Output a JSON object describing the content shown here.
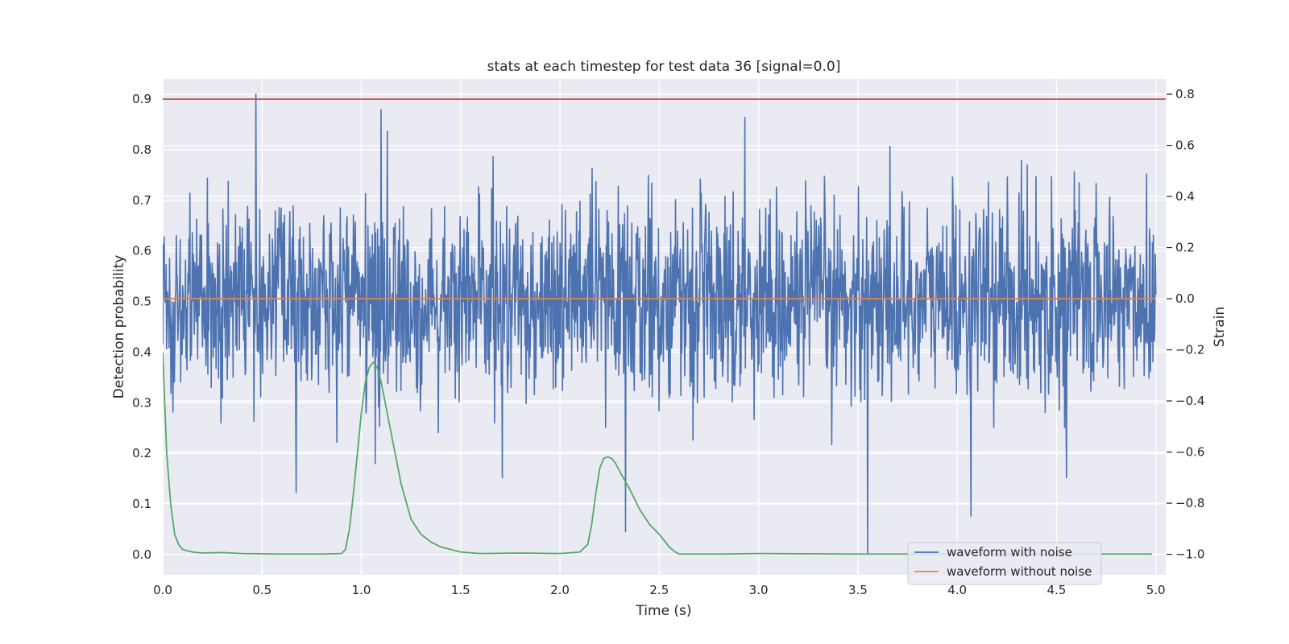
{
  "chart_data": {
    "type": "line",
    "title": "stats at each timestep for test data 36 [signal=0.0]",
    "xlabel": "Time (s)",
    "ylabel_left": "Detection probability",
    "ylabel_right": "Strain",
    "xlim": [
      0.0,
      5.05
    ],
    "ylim_left": [
      -0.04,
      0.94
    ],
    "ylim_right": [
      -1.08,
      0.86
    ],
    "x_ticks": [
      0.0,
      0.5,
      1.0,
      1.5,
      2.0,
      2.5,
      3.0,
      3.5,
      4.0,
      4.5,
      5.0
    ],
    "x_tick_labels": [
      "0.0",
      "0.5",
      "1.0",
      "1.5",
      "2.0",
      "2.5",
      "3.0",
      "3.5",
      "4.0",
      "4.5",
      "5.0"
    ],
    "y_left_ticks": [
      0.0,
      0.1,
      0.2,
      0.3,
      0.4,
      0.5,
      0.6,
      0.7,
      0.8,
      0.9
    ],
    "y_left_tick_labels": [
      "0.0",
      "0.1",
      "0.2",
      "0.3",
      "0.4",
      "0.5",
      "0.6",
      "0.7",
      "0.8",
      "0.9"
    ],
    "y_right_ticks": [
      -1.0,
      -0.8,
      -0.6,
      -0.4,
      -0.2,
      0.0,
      0.2,
      0.4,
      0.6,
      0.8
    ],
    "y_right_tick_labels": [
      "−1.0",
      "−0.8",
      "−0.6",
      "−0.4",
      "−0.2",
      "0.0",
      "0.2",
      "0.4",
      "0.6",
      "0.8"
    ],
    "grid": true,
    "legend_position": "lower-right",
    "background_color": "#eaeaf2",
    "threshold": {
      "axis": "left",
      "value": 0.9,
      "color": "#c44e52"
    },
    "series": [
      {
        "name": "waveform with noise",
        "axis": "right",
        "color": "#4c72b0",
        "x_range": [
          0.0,
          5.0
        ],
        "samples": 2048,
        "noise_sigma": 0.19,
        "value_range": [
          -1.0,
          0.8
        ],
        "notable_points": [
          {
            "x": 0.47,
            "y": 0.8
          },
          {
            "x": 1.1,
            "y": 0.74
          },
          {
            "x": 2.93,
            "y": 0.71
          },
          {
            "x": 3.55,
            "y": -1.0
          },
          {
            "x": 4.07,
            "y": -0.85
          },
          {
            "x": 1.71,
            "y": -0.7
          },
          {
            "x": 4.55,
            "y": -0.7
          }
        ]
      },
      {
        "name": "waveform without noise",
        "axis": "right",
        "color": "#dd8452",
        "x": [
          0.0,
          5.0
        ],
        "y": [
          0.0,
          0.0
        ]
      },
      {
        "name": "",
        "axis": "left",
        "color": "#55a868",
        "x": [
          0.0,
          0.02,
          0.04,
          0.06,
          0.08,
          0.1,
          0.15,
          0.2,
          0.3,
          0.4,
          0.6,
          0.8,
          0.9,
          0.92,
          0.94,
          0.96,
          0.98,
          1.0,
          1.02,
          1.04,
          1.06,
          1.08,
          1.1,
          1.15,
          1.2,
          1.25,
          1.3,
          1.35,
          1.4,
          1.5,
          1.6,
          1.8,
          2.0,
          2.1,
          2.14,
          2.16,
          2.18,
          2.2,
          2.22,
          2.24,
          2.26,
          2.28,
          2.3,
          2.35,
          2.4,
          2.45,
          2.5,
          2.55,
          2.58,
          2.6,
          2.65,
          2.8,
          3.0,
          3.5,
          4.0,
          4.5,
          4.98
        ],
        "y": [
          0.4,
          0.2,
          0.1,
          0.04,
          0.02,
          0.01,
          0.005,
          0.003,
          0.004,
          0.002,
          0.001,
          0.001,
          0.002,
          0.01,
          0.05,
          0.12,
          0.2,
          0.28,
          0.34,
          0.37,
          0.38,
          0.37,
          0.34,
          0.24,
          0.14,
          0.07,
          0.04,
          0.025,
          0.015,
          0.005,
          0.002,
          0.003,
          0.002,
          0.005,
          0.02,
          0.06,
          0.12,
          0.17,
          0.19,
          0.193,
          0.19,
          0.18,
          0.165,
          0.13,
          0.09,
          0.06,
          0.04,
          0.015,
          0.005,
          0.001,
          0.001,
          0.001,
          0.002,
          0.001,
          0.001,
          0.001,
          0.001
        ]
      }
    ]
  }
}
